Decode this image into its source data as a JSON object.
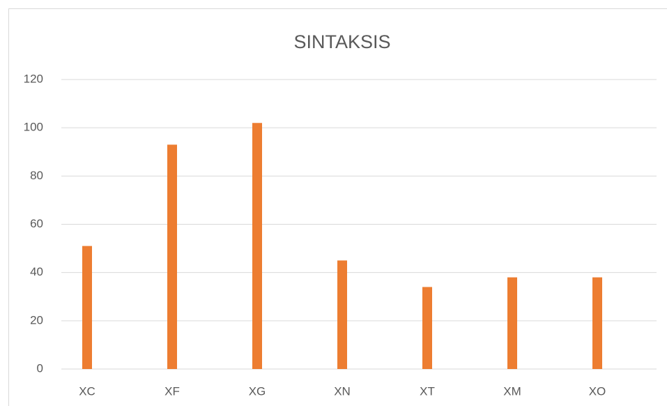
{
  "chart_data": {
    "type": "bar",
    "title": "SINTAKSIS",
    "categories": [
      "XC",
      "XF",
      "XG",
      "XN",
      "XT",
      "XM",
      "XO"
    ],
    "values": [
      51,
      93,
      102,
      45,
      34,
      38,
      38
    ],
    "color": "#ed7d31",
    "ylim": [
      0,
      120
    ],
    "yticks": [
      0,
      20,
      40,
      60,
      80,
      100,
      120
    ],
    "grid": true
  }
}
